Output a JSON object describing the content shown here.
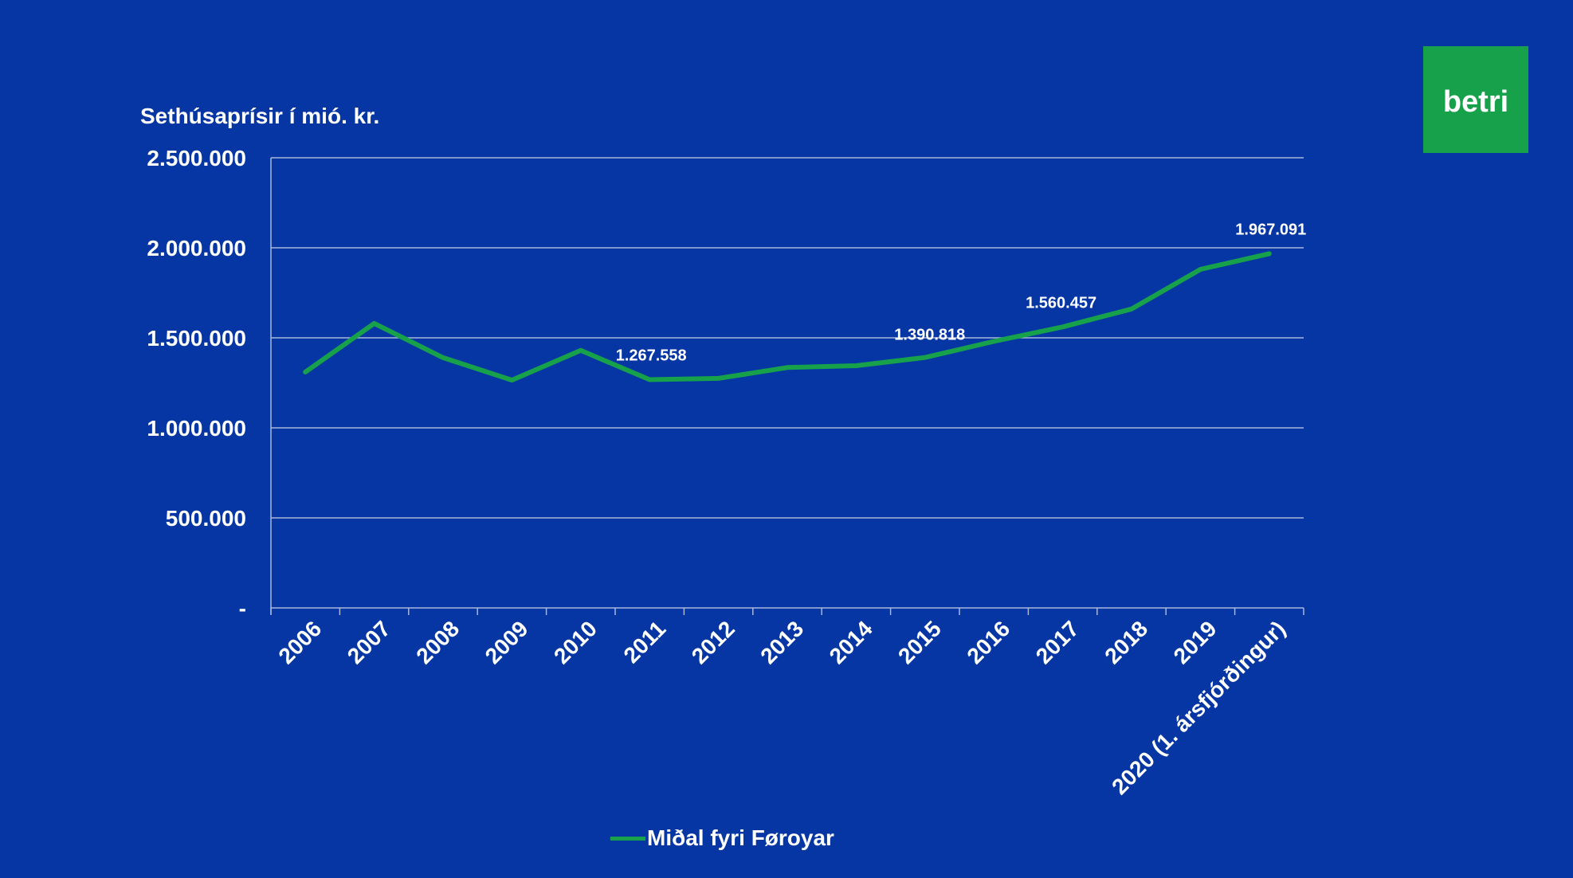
{
  "logo": {
    "text": "betri"
  },
  "colors": {
    "background": "#0536A3",
    "series": "#17A14A",
    "grid": "#A9B7DC",
    "text": "#FFFFFF"
  },
  "chart_data": {
    "type": "line",
    "title": "",
    "ylabel": "Sethúsaprísir í mió. kr.",
    "xlabel": "",
    "ylim": [
      0,
      2500000
    ],
    "yticks": [
      0,
      500000,
      1000000,
      1500000,
      2000000,
      2500000
    ],
    "ytick_labels": [
      "-",
      "500.000",
      "1.000.000",
      "1.500.000",
      "2.000.000",
      "2.500.000"
    ],
    "grid": true,
    "legend_position": "bottom",
    "categories": [
      "2006",
      "2007",
      "2008",
      "2009",
      "2010",
      "2011",
      "2012",
      "2013",
      "2014",
      "2015",
      "2016",
      "2017",
      "2018",
      "2019",
      "2020 (1. ársfjórðingur)"
    ],
    "series": [
      {
        "name": "Miðal fyri Føroyar",
        "values": [
          1310000,
          1580000,
          1390000,
          1265000,
          1430000,
          1267558,
          1275000,
          1335000,
          1345000,
          1390818,
          1480000,
          1560457,
          1660000,
          1880000,
          1967091
        ]
      }
    ],
    "data_labels": [
      {
        "index": 5,
        "text": "1.267.558"
      },
      {
        "index": 9,
        "text": "1.390.818"
      },
      {
        "index": 11,
        "text": "1.560.457"
      },
      {
        "index": 14,
        "text": "1.967.091"
      }
    ]
  }
}
